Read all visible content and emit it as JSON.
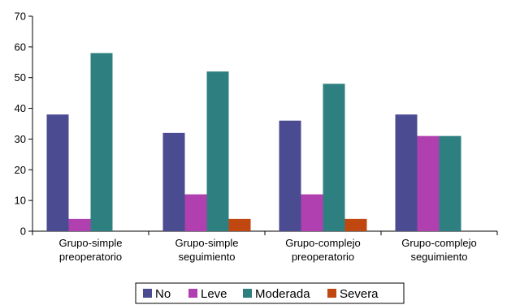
{
  "chart_data": {
    "type": "bar",
    "categories": [
      [
        "Grupo-simple",
        "preoperatorio"
      ],
      [
        "Grupo-simple",
        "seguimiento"
      ],
      [
        "Grupo-complejo",
        "preoperatorio"
      ],
      [
        "Grupo-complejo",
        "seguimiento"
      ]
    ],
    "series": [
      {
        "name": "No",
        "color": "#4b4b92",
        "values": [
          38,
          32,
          36,
          38
        ]
      },
      {
        "name": "Leve",
        "color": "#b03fb0",
        "values": [
          4,
          12,
          12,
          31
        ]
      },
      {
        "name": "Moderada",
        "color": "#2e8080",
        "values": [
          58,
          52,
          48,
          31
        ]
      },
      {
        "name": "Severa",
        "color": "#c0470f",
        "values": [
          0,
          4,
          4,
          0
        ]
      }
    ],
    "ylim": [
      0,
      70
    ],
    "yticks": [
      0,
      10,
      20,
      30,
      40,
      50,
      60,
      70
    ],
    "grid": false,
    "legend": "bottom",
    "title": "",
    "xlabel": "",
    "ylabel": ""
  }
}
